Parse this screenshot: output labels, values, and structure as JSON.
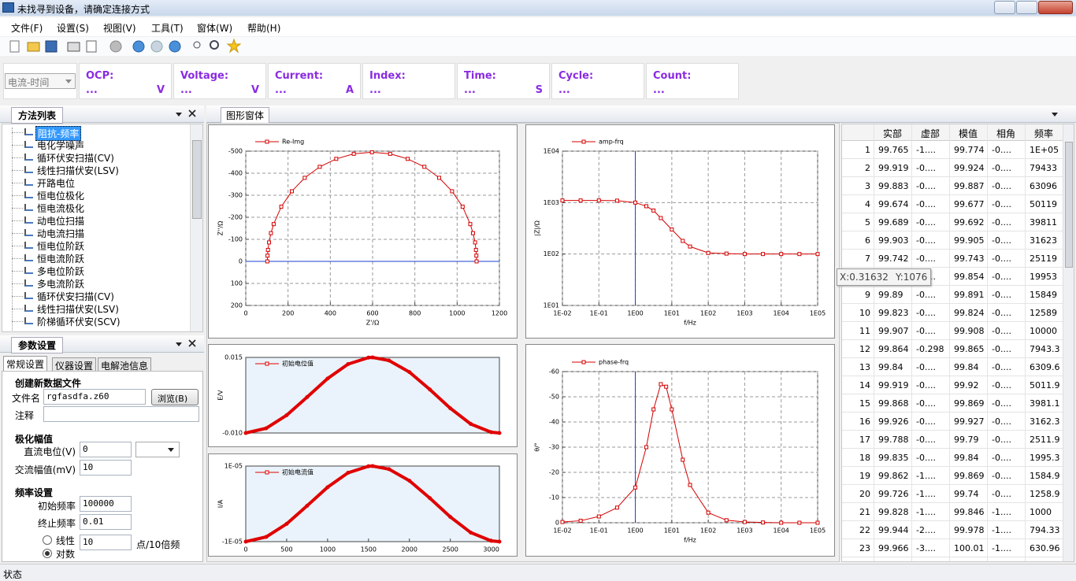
{
  "window": {
    "title": "未找寻到设备，请确定连接方式"
  },
  "menu": [
    "文件(F)",
    "设置(S)",
    "视图(V)",
    "工具(T)",
    "窗体(W)",
    "帮助(H)"
  ],
  "readouts": {
    "mode": "电流-时间",
    "items": [
      {
        "label": "OCP:",
        "value": "...",
        "unit": "V"
      },
      {
        "label": "Voltage:",
        "value": "...",
        "unit": "V"
      },
      {
        "label": "Current:",
        "value": "...",
        "unit": "A"
      },
      {
        "label": "Index:",
        "value": "..."
      },
      {
        "label": "Time:",
        "value": "...",
        "unit": "S"
      },
      {
        "label": "Cycle:",
        "value": "..."
      },
      {
        "label": "Count:",
        "value": "..."
      }
    ]
  },
  "methods": {
    "title": "方法列表",
    "selected": 0,
    "items": [
      "阻抗-频率",
      "电化学噪声",
      "循环伏安扫描(CV)",
      "线性扫描伏安(LSV)",
      "开路电位",
      "恒电位极化",
      "恒电流极化",
      "动电位扫描",
      "动电流扫描",
      "恒电位阶跃",
      "恒电流阶跃",
      "多电位阶跃",
      "多电流阶跃",
      "循环伏安扫描(CV)",
      "线性扫描伏安(LSV)",
      "阶梯循环伏安(SCV)"
    ]
  },
  "params": {
    "title": "参数设置",
    "tabs": [
      "常规设置",
      "仪器设置",
      "电解池信息"
    ],
    "active_tab": 0,
    "file_section": "创建新数据文件",
    "file_name_label": "文件名",
    "file_name": "rgfasdfa.z60",
    "browse": "浏览(B)",
    "note_label": "注释",
    "amplitude_section": "极化幅值",
    "dc_label": "直流电位(V)",
    "dc_value": "0",
    "ac_label": "交流幅值(mV)",
    "ac_value": "10",
    "freq_section": "频率设置",
    "start_label": "初始频率",
    "start_value": "100000",
    "end_label": "终止频率",
    "end_value": "0.01",
    "linear_label": "线性",
    "points_value": "10",
    "points_unit": "点/10倍频",
    "log_label": "对数",
    "checked_scale": "log"
  },
  "graph_window": {
    "tab": "图形窗体"
  },
  "chart_data": [
    {
      "type": "line",
      "xlabel": "Z'/Ω",
      "ylabel": "Z''/Ω",
      "xlim": [
        0,
        1200
      ],
      "ylim": [
        -500,
        200
      ],
      "y_inverted": true,
      "xticks": [
        0,
        200,
        400,
        600,
        800,
        1000,
        1200
      ],
      "yticks": [
        -500,
        -400,
        -300,
        -200,
        -100,
        0,
        100,
        200
      ],
      "grid": true,
      "zero_line": true,
      "x": [
        102,
        103,
        105,
        110,
        119,
        132,
        168,
        218,
        279,
        350,
        428,
        511,
        597,
        683,
        766,
        845,
        915,
        976,
        1026,
        1062,
        1075,
        1085,
        1089,
        1091,
        1092
      ],
      "series": [
        {
          "name": "Re-Img",
          "color": "#d40000",
          "marker": "square",
          "values": [
            0,
            -26,
            -52,
            -86,
            -128,
            -169,
            -248,
            -318,
            -379,
            -429,
            -465,
            -488,
            -495,
            -488,
            -465,
            -429,
            -379,
            -318,
            -248,
            -169,
            -128,
            -86,
            -52,
            -26,
            0
          ]
        }
      ]
    },
    {
      "type": "line",
      "xlabel": "f/Hz",
      "ylabel": "|Z|/Ω",
      "x_log": true,
      "y_log": true,
      "xlim": [
        0.01,
        100000
      ],
      "ylim": [
        10,
        10000
      ],
      "xticks": [
        {
          "value": 0.01,
          "label": "1E-02"
        },
        {
          "value": 0.1,
          "label": "1E-01"
        },
        {
          "value": 1,
          "label": "1E00"
        },
        {
          "value": 10,
          "label": "1E01"
        },
        {
          "value": 100,
          "label": "1E02"
        },
        {
          "value": 1000,
          "label": "1E03"
        },
        {
          "value": 10000,
          "label": "1E04"
        },
        {
          "value": 100000,
          "label": "1E05"
        }
      ],
      "yticks": [
        {
          "value": 10,
          "label": "1E01"
        },
        {
          "value": 100,
          "label": "1E02"
        },
        {
          "value": 1000,
          "label": "1E03"
        },
        {
          "value": 10000,
          "label": "1E04"
        }
      ],
      "grid": true,
      "cursor_x": 1,
      "x": [
        0.01,
        0.0316,
        0.1,
        0.316,
        1,
        2,
        3.16,
        5,
        10,
        20,
        31.6,
        100,
        316,
        1000,
        3162,
        10000,
        31623,
        100000
      ],
      "series": [
        {
          "name": "amp-frq",
          "color": "#d40000",
          "marker": "square",
          "values": [
            1100,
            1100,
            1099,
            1090,
            1000,
            850,
            700,
            500,
            300,
            180,
            140,
            105,
            102,
            100,
            100,
            100,
            100,
            100
          ]
        }
      ]
    },
    {
      "type": "line",
      "ylabel": "E/V",
      "xlim": [
        0,
        3100
      ],
      "ylim": [
        -0.01,
        0.015
      ],
      "grid": false,
      "background": "#eaf3fb",
      "yticks": [
        {
          "value": -0.01,
          "label": "-0.010"
        },
        {
          "value": 0.015,
          "label": "0.015"
        }
      ],
      "x": [
        0,
        250,
        500,
        750,
        1000,
        1250,
        1500,
        1550,
        1750,
        2000,
        2250,
        2500,
        2750,
        3000,
        3100
      ],
      "series": [
        {
          "name": "初始电位值",
          "color": "#e00000",
          "marker": "circle",
          "values": [
            -0.01,
            -0.00843,
            -0.00411,
            0.00187,
            0.00801,
            0.01278,
            0.01494,
            0.015,
            0.01399,
            0.01014,
            0.00439,
            -0.00183,
            -0.00702,
            -0.00974,
            -0.01
          ]
        }
      ]
    },
    {
      "type": "line",
      "xlabel": null,
      "ylabel": "I/A",
      "xlim": [
        0,
        3100
      ],
      "ylim": [
        -1e-05,
        1e-05
      ],
      "grid": false,
      "background": "#eaf3fb",
      "xticks": [
        0,
        500,
        1000,
        1500,
        2000,
        2500,
        3000
      ],
      "yticks": [
        {
          "value": -1e-05,
          "label": "-1E-05"
        },
        {
          "value": 1e-05,
          "label": "1E-05"
        }
      ],
      "x": [
        0,
        250,
        500,
        750,
        1000,
        1250,
        1500,
        1550,
        1750,
        2000,
        2250,
        2500,
        2750,
        3000,
        3100
      ],
      "series": [
        {
          "name": "初始电流值",
          "color": "#e00000",
          "marker": "circle",
          "values": [
            -1e-05,
            -8.744e-06,
            -5.29e-06,
            -5.06e-07,
            4.409e-06,
            8.22e-06,
            9.949e-06,
            1e-05,
            9.19e-06,
            6.113e-06,
            1.51e-06,
            -3.466e-06,
            -7.612e-06,
            -9.795e-06,
            -1e-05
          ]
        }
      ]
    },
    {
      "type": "line",
      "xlabel": "f/Hz",
      "ylabel": "θ/°",
      "x_log": true,
      "xlim": [
        0.01,
        100000
      ],
      "ylim": [
        -60,
        0
      ],
      "y_inverted": true,
      "xticks": [
        {
          "value": 0.01,
          "label": "1E-02"
        },
        {
          "value": 0.1,
          "label": "1E-01"
        },
        {
          "value": 1,
          "label": "1E00"
        },
        {
          "value": 10,
          "label": "1E01"
        },
        {
          "value": 100,
          "label": "1E02"
        },
        {
          "value": 1000,
          "label": "1E03"
        },
        {
          "value": 10000,
          "label": "1E04"
        },
        {
          "value": 100000,
          "label": "1E05"
        }
      ],
      "yticks": [
        -60,
        -50,
        -40,
        -30,
        -20,
        -10,
        0
      ],
      "grid": true,
      "cursor_x": 1,
      "x": [
        0.01,
        0.0316,
        0.1,
        0.316,
        1,
        2,
        3.16,
        5,
        7,
        10,
        20,
        31.6,
        100,
        316,
        1000,
        3162,
        10000,
        31623,
        100000
      ],
      "series": [
        {
          "name": "phase-frq",
          "color": "#d40000",
          "marker": "square",
          "values": [
            -0.3,
            -0.8,
            -2.5,
            -6,
            -14,
            -30,
            -45,
            -55,
            -54,
            -45,
            -25,
            -15,
            -4,
            -1,
            -0.3,
            -0.1,
            0,
            0,
            0
          ]
        }
      ]
    }
  ],
  "table": {
    "columns": [
      "实部",
      "虚部",
      "模值",
      "相角",
      "频率"
    ],
    "rows": [
      [
        "1",
        "99.765",
        "-1....",
        "99.774",
        "-0....",
        "1E+05"
      ],
      [
        "2",
        "99.919",
        "-0....",
        "99.924",
        "-0....",
        "79433"
      ],
      [
        "3",
        "99.883",
        "-0....",
        "99.887",
        "-0....",
        "63096"
      ],
      [
        "4",
        "99.674",
        "-0....",
        "99.677",
        "-0....",
        "50119"
      ],
      [
        "5",
        "99.689",
        "-0....",
        "99.692",
        "-0....",
        "39811"
      ],
      [
        "6",
        "99.903",
        "-0....",
        "99.905",
        "-0....",
        "31623"
      ],
      [
        "7",
        "99.742",
        "-0....",
        "99.743",
        "-0....",
        "25119"
      ],
      [
        "8",
        "99.852",
        "-0....",
        "99.854",
        "-0....",
        "19953"
      ],
      [
        "9",
        "99.89",
        "-0....",
        "99.891",
        "-0....",
        "15849"
      ],
      [
        "10",
        "99.823",
        "-0....",
        "99.824",
        "-0....",
        "12589"
      ],
      [
        "11",
        "99.907",
        "-0....",
        "99.908",
        "-0....",
        "10000"
      ],
      [
        "12",
        "99.864",
        "-0.298",
        "99.865",
        "-0....",
        "7943.3"
      ],
      [
        "13",
        "99.84",
        "-0....",
        "99.84",
        "-0....",
        "6309.6"
      ],
      [
        "14",
        "99.919",
        "-0....",
        "99.92",
        "-0....",
        "5011.9"
      ],
      [
        "15",
        "99.868",
        "-0....",
        "99.869",
        "-0....",
        "3981.1"
      ],
      [
        "16",
        "99.926",
        "-0....",
        "99.927",
        "-0....",
        "3162.3"
      ],
      [
        "17",
        "99.788",
        "-0....",
        "99.79",
        "-0....",
        "2511.9"
      ],
      [
        "18",
        "99.835",
        "-0....",
        "99.84",
        "-0....",
        "1995.3"
      ],
      [
        "19",
        "99.862",
        "-1....",
        "99.869",
        "-0....",
        "1584.9"
      ],
      [
        "20",
        "99.726",
        "-1....",
        "99.74",
        "-0....",
        "1258.9"
      ],
      [
        "21",
        "99.828",
        "-1....",
        "99.846",
        "-1....",
        "1000"
      ],
      [
        "22",
        "99.944",
        "-2....",
        "99.978",
        "-1....",
        "794.33"
      ],
      [
        "23",
        "99.966",
        "-3....",
        "100.01",
        "-1....",
        "630.96"
      ]
    ]
  },
  "tooltip": {
    "x": "X:0.31632",
    "y": "Y:1076"
  },
  "status": "状态"
}
